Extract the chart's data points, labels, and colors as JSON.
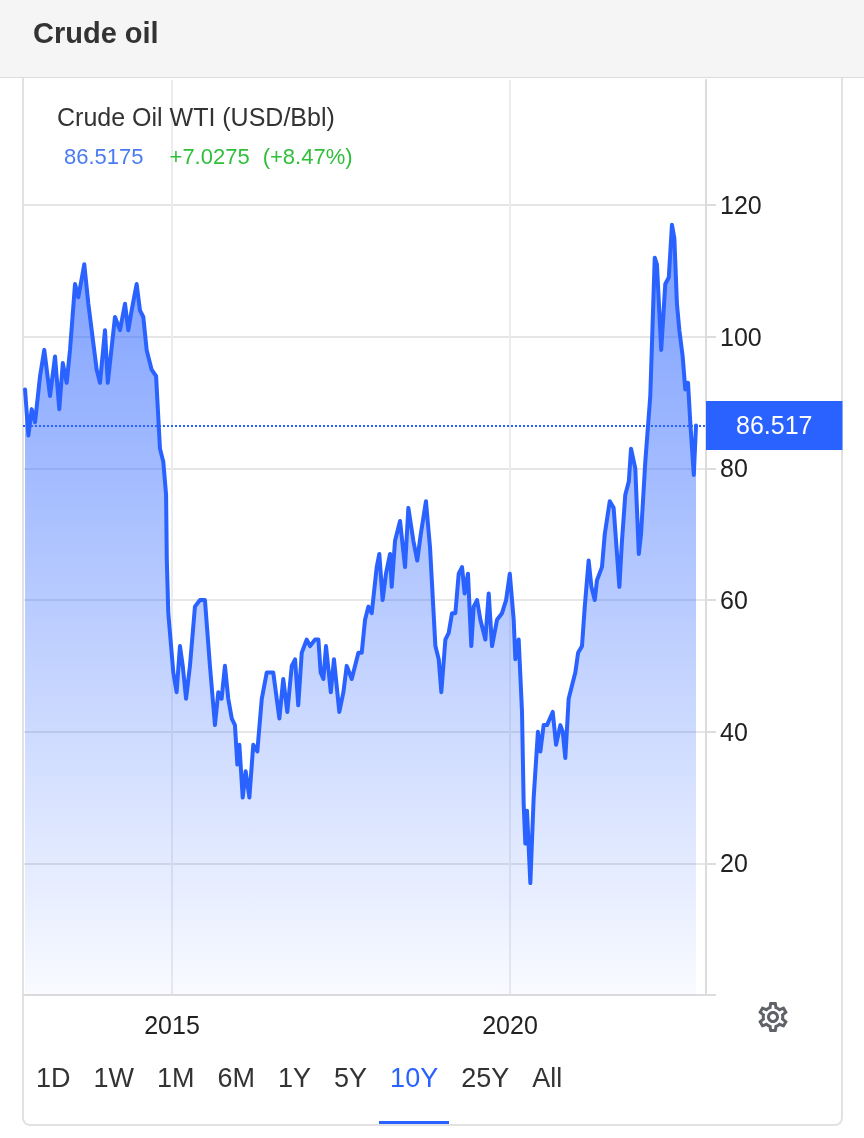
{
  "chart_data": {
    "type": "area",
    "title": "Crude oil",
    "subtitle": "Crude Oil WTI (USD/Bbl)",
    "annotations": [
      "86.5175",
      "+7.0275",
      "(+8.47%)",
      "1D",
      "1W",
      "1M",
      "6M",
      "1Y",
      "5Y",
      "10Y",
      "25Y",
      "All"
    ],
    "x": [
      "2012-10-29",
      "2012-11-16",
      "2012-12-04",
      "2012-12-22",
      "2013-01-18",
      "2013-02-10",
      "2013-03-13",
      "2013-04-09",
      "2013-05-02",
      "2013-05-21",
      "2013-06-11",
      "2013-06-29",
      "2013-07-26",
      "2013-08-13",
      "2013-09-14",
      "2013-10-06",
      "2013-11-20",
      "2013-12-08",
      "2014-01-04",
      "2014-01-19",
      "2014-02-27",
      "2014-03-26",
      "2014-04-22",
      "2014-05-10",
      "2014-05-28",
      "2014-06-24",
      "2014-07-12",
      "2014-07-30",
      "2014-08-17",
      "2014-09-13",
      "2014-10-07",
      "2014-10-28",
      "2014-11-15",
      "2014-11-30",
      "2014-12-04",
      "2014-12-12",
      "2015-01-08",
      "2015-01-26",
      "2015-02-13",
      "2015-02-28",
      "2015-03-18",
      "2015-04-08",
      "2015-05-05",
      "2015-06-01",
      "2015-06-28",
      "2015-07-25",
      "2015-08-21",
      "2015-09-08",
      "2015-09-26",
      "2015-10-14",
      "2015-11-01",
      "2015-11-20",
      "2015-12-07",
      "2015-12-20",
      "2015-12-31",
      "2016-01-18",
      "2016-02-03",
      "2016-02-23",
      "2016-03-15",
      "2016-04-06",
      "2016-04-30",
      "2016-05-27",
      "2016-06-17",
      "2016-07-01",
      "2016-08-03",
      "2016-08-24",
      "2016-09-15",
      "2016-10-09",
      "2016-10-27",
      "2016-11-13",
      "2016-12-02",
      "2016-12-29",
      "2017-01-16",
      "2017-02-12",
      "2017-03-02",
      "2017-03-14",
      "2017-03-29",
      "2017-04-12",
      "2017-05-08",
      "2017-05-25",
      "2017-06-23",
      "2017-07-15",
      "2017-08-02",
      "2017-08-29",
      "2017-10-04",
      "2017-10-22",
      "2017-11-09",
      "2017-11-27",
      "2017-12-15",
      "2018-01-11",
      "2018-01-25",
      "2018-02-12",
      "2018-03-02",
      "2018-03-24",
      "2018-04-02",
      "2018-04-20",
      "2018-05-17",
      "2018-06-13",
      "2018-07-01",
      "2018-07-28",
      "2018-08-18",
      "2018-09-06",
      "2018-10-04",
      "2018-10-26",
      "2018-11-24",
      "2018-12-12",
      "2018-12-26",
      "2019-01-17",
      "2019-02-04",
      "2019-02-22",
      "2019-03-12",
      "2019-03-30",
      "2019-04-17",
      "2019-05-01",
      "2019-05-19",
      "2019-06-06",
      "2019-06-19",
      "2019-07-07",
      "2019-07-25",
      "2019-08-21",
      "2019-09-08",
      "2019-09-26",
      "2019-10-23",
      "2019-11-19",
      "2019-12-11",
      "2019-12-31",
      "2020-01-21",
      "2020-01-30",
      "2020-02-17",
      "2020-03-06",
      "2020-03-15",
      "2020-03-24",
      "2020-04-02",
      "2020-04-20",
      "2020-05-08",
      "2020-05-31",
      "2020-06-13",
      "2020-07-01",
      "2020-07-19",
      "2020-08-19",
      "2020-09-06",
      "2020-09-29",
      "2020-10-12",
      "2020-10-26",
      "2020-11-13",
      "2020-12-01",
      "2020-12-19",
      "2021-01-03",
      "2021-01-24",
      "2021-02-08",
      "2021-03-01",
      "2021-03-16",
      "2021-04-03",
      "2021-04-15",
      "2021-05-12",
      "2021-05-27",
      "2021-06-23",
      "2021-07-14",
      "2021-07-27",
      "2021-08-14",
      "2021-08-28",
      "2021-09-15",
      "2021-10-04",
      "2021-10-16",
      "2021-11-08",
      "2021-11-27",
      "2021-12-09",
      "2022-01-01",
      "2022-01-28",
      "2022-02-21",
      "2022-03-05",
      "2022-03-28",
      "2022-04-19",
      "2022-05-08",
      "2022-05-25",
      "2022-06-07",
      "2022-06-21",
      "2022-07-04",
      "2022-07-22",
      "2022-08-05",
      "2022-08-20",
      "2022-09-01",
      "2022-09-20",
      "2022-10-02"
    ],
    "values": [
      92,
      85,
      89,
      87,
      94,
      98,
      91,
      97,
      89,
      96,
      93,
      98,
      108,
      106,
      111,
      105,
      95,
      93,
      101,
      93,
      103,
      101,
      105,
      101,
      104,
      108,
      104,
      103,
      98,
      95,
      94,
      83,
      81,
      76,
      66,
      58,
      49,
      46,
      53,
      50,
      45,
      50,
      59,
      60,
      60,
      50,
      41,
      46,
      45,
      50,
      45,
      42,
      41,
      35,
      38,
      30,
      34,
      30,
      38,
      37,
      45,
      49,
      49,
      49,
      42,
      48,
      43,
      50,
      51,
      44,
      52,
      54,
      53,
      54,
      54,
      49,
      48,
      53,
      46,
      51,
      43,
      46,
      50,
      48,
      52,
      52,
      57,
      59,
      58,
      65,
      67,
      60,
      64,
      67,
      62,
      69,
      72,
      65,
      74,
      69,
      66,
      70,
      75,
      68,
      53,
      51,
      46,
      54,
      55,
      58,
      58,
      64,
      65,
      61,
      64,
      53,
      59,
      60,
      57,
      54,
      61,
      53,
      57,
      58,
      60,
      64,
      57,
      51,
      54,
      43,
      29,
      23,
      28,
      17,
      30,
      40,
      37,
      41,
      41,
      43,
      38,
      41,
      40,
      36,
      45,
      47,
      49,
      52,
      53,
      59,
      66,
      62,
      60,
      63,
      65,
      70,
      75,
      74,
      69,
      62,
      69,
      76,
      78,
      83,
      80,
      67,
      70,
      81,
      91,
      112,
      111,
      98,
      108,
      109,
      117,
      115,
      105,
      101,
      97,
      92,
      93,
      87,
      79,
      86.5
    ],
    "color": "#2962ff",
    "marker": "none",
    "line_style": "solid",
    "xlim": [
      "2012-10-18",
      "2022-11-25"
    ],
    "xticks": [
      "2015",
      "2020"
    ],
    "ylim": [
      0,
      139
    ],
    "yticks": [
      {
        "value": 0,
        "label": null
      },
      20,
      40,
      60,
      80,
      100,
      120
    ],
    "grid": true,
    "ref_lines": [
      {
        "axis": "y",
        "value": 86.517,
        "label": "86.517",
        "color": "#2962ff",
        "line_style": "dotted"
      }
    ]
  }
}
